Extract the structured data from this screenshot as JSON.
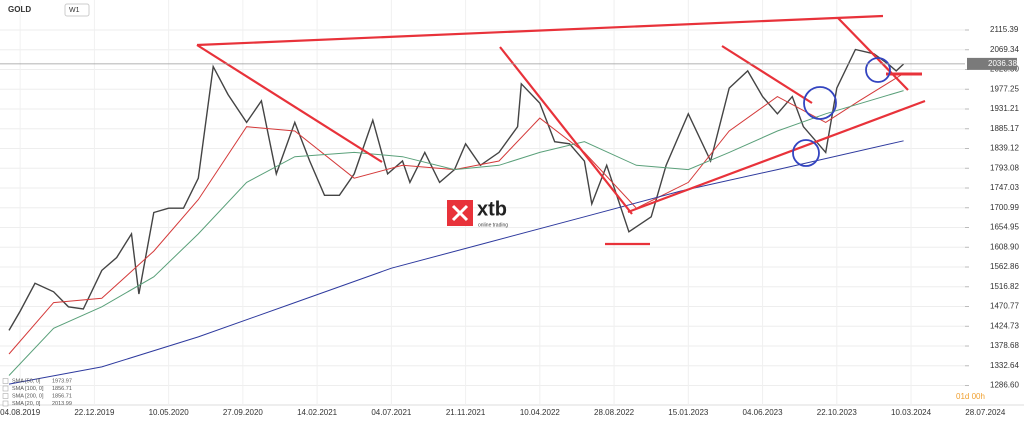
{
  "chart_data": {
    "type": "line",
    "symbol": "GOLD",
    "interval": "W1",
    "countdown": "01d 00h",
    "last_price": {
      "value": 2036.38,
      "label": "2036.38"
    },
    "xlim": [
      "2019-06-27",
      "2024-10-09"
    ],
    "ylim": [
      1241.2,
      2185.3
    ],
    "grid": true,
    "xticks": [
      {
        "value": "2019-08-04",
        "label": "04.08.2019"
      },
      {
        "value": "2019-12-22",
        "label": "22.12.2019"
      },
      {
        "value": "2020-05-10",
        "label": "10.05.2020"
      },
      {
        "value": "2020-09-27",
        "label": "27.09.2020"
      },
      {
        "value": "2021-02-14",
        "label": "14.02.2021"
      },
      {
        "value": "2021-07-04",
        "label": "04.07.2021"
      },
      {
        "value": "2021-11-21",
        "label": "21.11.2021"
      },
      {
        "value": "2022-04-10",
        "label": "10.04.2022"
      },
      {
        "value": "2022-08-28",
        "label": "28.08.2022"
      },
      {
        "value": "2023-01-15",
        "label": "15.01.2023"
      },
      {
        "value": "2023-06-04",
        "label": "04.06.2023"
      },
      {
        "value": "2023-10-22",
        "label": "22.10.2023"
      },
      {
        "value": "2024-03-10",
        "label": "10.03.2024"
      },
      {
        "value": "2024-07-28",
        "label": "28.07.2024"
      }
    ],
    "yticks": [
      2115.39,
      2069.34,
      {
        "value": 2023.3,
        "label": "2023.30"
      },
      1977.25,
      1931.21,
      1885.17,
      1839.12,
      1793.08,
      1747.03,
      1700.99,
      1654.95,
      {
        "value": 1608.9,
        "label": "1608.90"
      },
      1562.86,
      1516.82,
      1470.77,
      1424.73,
      1378.68,
      1332.64,
      {
        "value": 1286.6,
        "label": "1286.60"
      }
    ],
    "series": [
      {
        "name": "GOLD",
        "color": "#444444",
        "x": [
          "2019-07-14",
          "2019-08-04",
          "2019-09-01",
          "2019-10-06",
          "2019-11-03",
          "2019-12-01",
          "2020-01-05",
          "2020-02-02",
          "2020-03-01",
          "2020-03-15",
          "2020-04-12",
          "2020-05-10",
          "2020-06-07",
          "2020-07-05",
          "2020-08-02",
          "2020-08-30",
          "2020-10-04",
          "2020-11-01",
          "2020-11-29",
          "2021-01-03",
          "2021-01-31",
          "2021-02-28",
          "2021-03-28",
          "2021-04-25",
          "2021-05-30",
          "2021-06-27",
          "2021-07-25",
          "2021-08-08",
          "2021-09-05",
          "2021-10-03",
          "2021-10-31",
          "2021-11-21",
          "2021-12-19",
          "2022-01-23",
          "2022-02-27",
          "2022-03-06",
          "2022-04-10",
          "2022-05-08",
          "2022-06-05",
          "2022-07-03",
          "2022-07-17",
          "2022-08-14",
          "2022-09-25",
          "2022-11-06",
          "2022-12-04",
          "2023-01-15",
          "2023-02-26",
          "2023-04-02",
          "2023-05-07",
          "2023-06-04",
          "2023-07-02",
          "2023-07-30",
          "2023-08-20",
          "2023-10-01",
          "2023-10-22",
          "2023-11-26",
          "2023-12-31",
          "2024-01-28",
          "2024-02-11",
          "2024-02-25"
        ],
        "values": [
          1415,
          1460,
          1525,
          1505,
          1470,
          1465,
          1555,
          1585,
          1640,
          1500,
          1690,
          1700,
          1700,
          1770,
          2030,
          1965,
          1900,
          1950,
          1780,
          1900,
          1810,
          1730,
          1730,
          1780,
          1905,
          1780,
          1810,
          1760,
          1830,
          1760,
          1790,
          1850,
          1800,
          1830,
          1890,
          1990,
          1945,
          1855,
          1850,
          1810,
          1710,
          1800,
          1645,
          1680,
          1800,
          1920,
          1810,
          1980,
          2020,
          1960,
          1920,
          1960,
          1890,
          1830,
          1980,
          2070,
          2060,
          2035,
          2020,
          2036
        ]
      },
      {
        "name": "SMA 20",
        "color": "#d43a3a",
        "x": [
          "2019-07-14",
          "2019-10-06",
          "2020-01-05",
          "2020-04-12",
          "2020-07-05",
          "2020-10-04",
          "2021-01-03",
          "2021-04-25",
          "2021-07-25",
          "2021-10-31",
          "2022-01-23",
          "2022-04-10",
          "2022-07-03",
          "2022-10-09",
          "2023-01-15",
          "2023-04-02",
          "2023-07-02",
          "2023-10-01",
          "2023-12-03",
          "2024-02-25"
        ],
        "values": [
          1360,
          1480,
          1490,
          1600,
          1720,
          1890,
          1880,
          1770,
          1800,
          1790,
          1810,
          1910,
          1830,
          1700,
          1760,
          1880,
          1960,
          1900,
          1950,
          2014
        ]
      },
      {
        "name": "SMA 50",
        "color": "#5aa07a",
        "x": [
          "2019-07-14",
          "2019-10-06",
          "2020-01-05",
          "2020-04-12",
          "2020-07-05",
          "2020-10-04",
          "2021-01-03",
          "2021-04-25",
          "2021-07-25",
          "2021-10-31",
          "2022-01-23",
          "2022-04-10",
          "2022-07-03",
          "2022-10-09",
          "2023-01-15",
          "2023-04-02",
          "2023-07-02",
          "2023-10-01",
          "2024-02-25"
        ],
        "values": [
          1310,
          1420,
          1470,
          1540,
          1640,
          1760,
          1820,
          1830,
          1820,
          1790,
          1800,
          1830,
          1855,
          1800,
          1790,
          1830,
          1880,
          1920,
          1974
        ]
      },
      {
        "name": "SMA 200",
        "color": "#2e3a9e",
        "x": [
          "2019-07-14",
          "2020-01-05",
          "2020-07-05",
          "2021-01-03",
          "2021-07-04",
          "2022-01-02",
          "2022-07-03",
          "2023-01-01",
          "2023-07-02",
          "2024-02-25"
        ],
        "values": [
          1290,
          1330,
          1400,
          1480,
          1560,
          1620,
          1680,
          1740,
          1790,
          1857
        ]
      }
    ],
    "indicators": [
      {
        "label": "SMA [50, 0]",
        "value": 1973.97
      },
      {
        "label": "SMA [100, 0]",
        "value": 1856.71
      },
      {
        "label": "SMA [200, 0]",
        "value": 1856.71
      },
      {
        "label": "SMA [20, 0]",
        "value": 2013.99
      }
    ],
    "logo": {
      "name": "xtb",
      "tagline": "online trading"
    }
  }
}
